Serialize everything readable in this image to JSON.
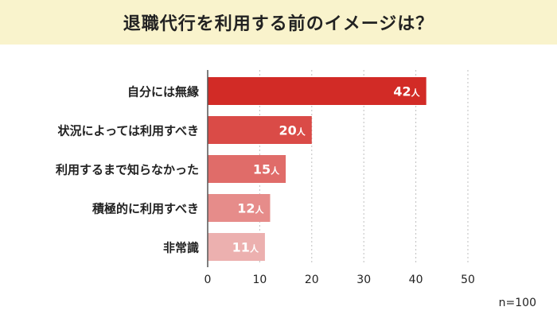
{
  "header": {
    "title": "退職代行を利用する前のイメージは？"
  },
  "chart_data": {
    "type": "bar",
    "orientation": "horizontal",
    "title": "退職代行を利用する前のイメージは？",
    "categories": [
      "自分には無縁",
      "状況によっては利用すべき",
      "利用するまで知らなかった",
      "積極的に利用すべき",
      "非常識"
    ],
    "values": [
      42,
      20,
      15,
      12,
      11
    ],
    "value_suffix": "人",
    "xlim": [
      0,
      50
    ],
    "xticks": [
      0,
      10,
      20,
      30,
      40,
      50
    ],
    "grid": "vertical dotted",
    "bar_colors": [
      "#d22b26",
      "#da4b47",
      "#e06c69",
      "#e68c8a",
      "#ecb0af"
    ],
    "sample_note": "n=100"
  },
  "colors": {
    "title_band": "#f9f3cc",
    "text": "#222222",
    "grid": "#bfbfbf",
    "axis": "#555555"
  }
}
